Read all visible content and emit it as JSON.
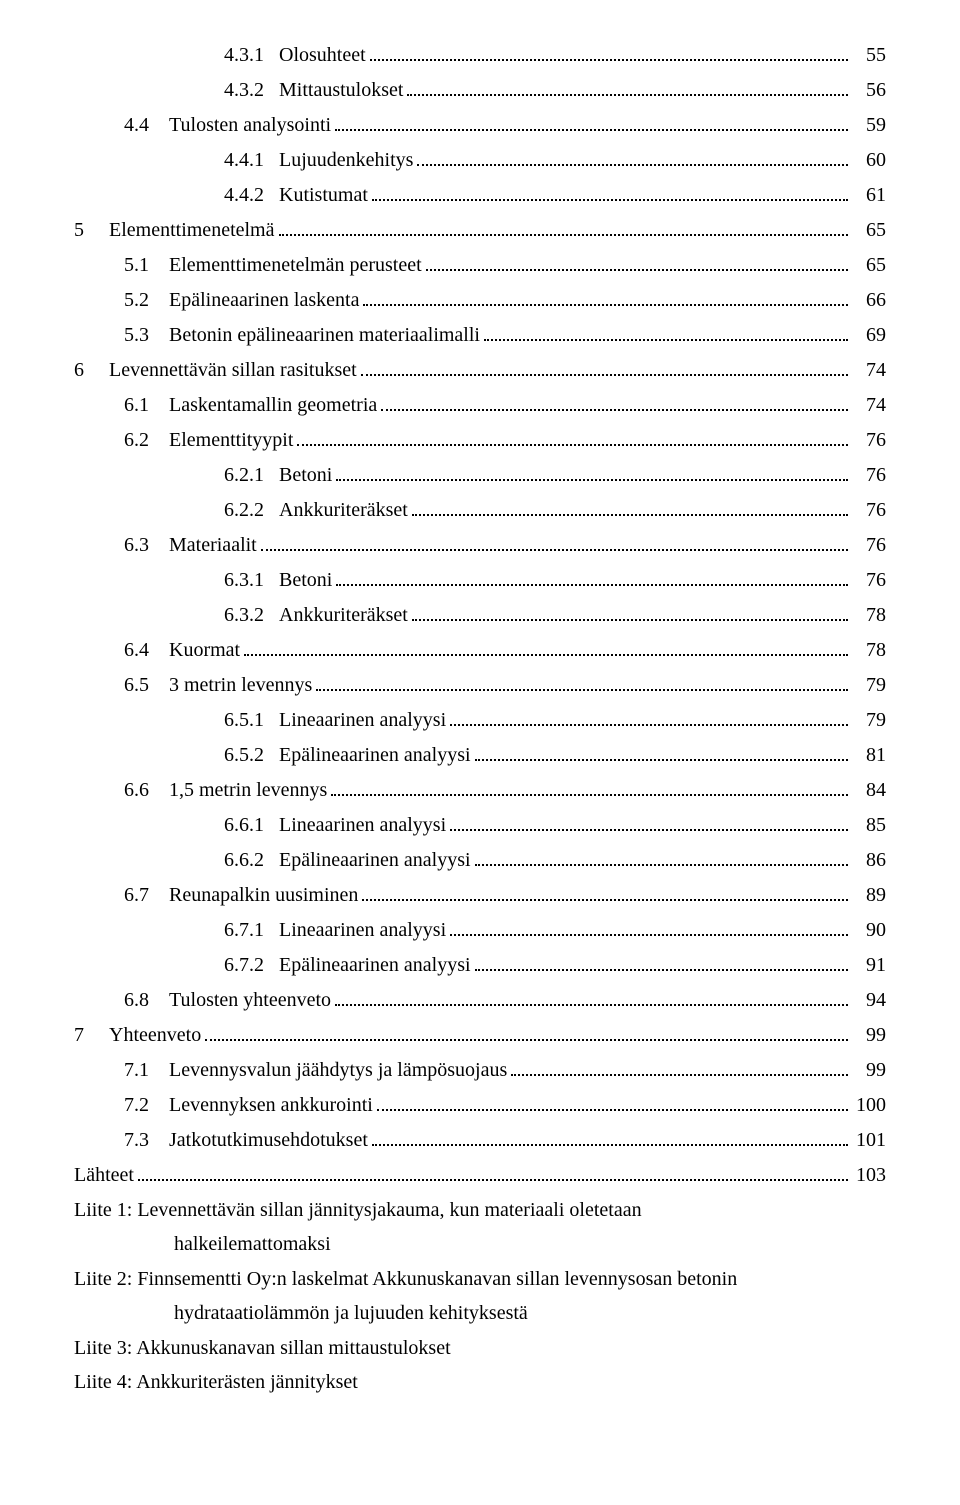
{
  "toc": [
    {
      "indent": 3,
      "num": "4.3.1",
      "title": "Olosuhteet",
      "page": "55"
    },
    {
      "indent": 3,
      "num": "4.3.2",
      "title": "Mittaustulokset",
      "page": "56"
    },
    {
      "indent": 1,
      "num": "4.4",
      "title": "Tulosten analysointi",
      "page": "59"
    },
    {
      "indent": 3,
      "num": "4.4.1",
      "title": "Lujuudenkehitys",
      "page": "60"
    },
    {
      "indent": 3,
      "num": "4.4.2",
      "title": "Kutistumat",
      "page": "61"
    },
    {
      "indent": 0,
      "num": "5",
      "title": "Elementtimenetelmä",
      "page": "65"
    },
    {
      "indent": 1,
      "num": "5.1",
      "title": "Elementtimenetelmän perusteet",
      "page": "65"
    },
    {
      "indent": 1,
      "num": "5.2",
      "title": "Epälineaarinen laskenta",
      "page": "66"
    },
    {
      "indent": 1,
      "num": "5.3",
      "title": "Betonin epälineaarinen materiaalimalli",
      "page": "69"
    },
    {
      "indent": 0,
      "num": "6",
      "title": "Levennettävän sillan rasitukset",
      "page": "74"
    },
    {
      "indent": 1,
      "num": "6.1",
      "title": "Laskentamallin geometria",
      "page": "74"
    },
    {
      "indent": 1,
      "num": "6.2",
      "title": "Elementtityypit",
      "page": "76"
    },
    {
      "indent": 3,
      "num": "6.2.1",
      "title": "Betoni",
      "page": "76"
    },
    {
      "indent": 3,
      "num": "6.2.2",
      "title": "Ankkuriteräkset",
      "page": "76"
    },
    {
      "indent": 1,
      "num": "6.3",
      "title": "Materiaalit",
      "page": "76"
    },
    {
      "indent": 3,
      "num": "6.3.1",
      "title": "Betoni",
      "page": "76"
    },
    {
      "indent": 3,
      "num": "6.3.2",
      "title": "Ankkuriteräkset",
      "page": "78"
    },
    {
      "indent": 1,
      "num": "6.4",
      "title": "Kuormat",
      "page": "78"
    },
    {
      "indent": 1,
      "num": "6.5",
      "title": "3 metrin levennys",
      "page": "79"
    },
    {
      "indent": 3,
      "num": "6.5.1",
      "title": "Lineaarinen analyysi",
      "page": "79"
    },
    {
      "indent": 3,
      "num": "6.5.2",
      "title": "Epälineaarinen analyysi",
      "page": "81"
    },
    {
      "indent": 1,
      "num": "6.6",
      "title": "1,5 metrin levennys",
      "page": "84"
    },
    {
      "indent": 3,
      "num": "6.6.1",
      "title": "Lineaarinen analyysi",
      "page": "85"
    },
    {
      "indent": 3,
      "num": "6.6.2",
      "title": "Epälineaarinen analyysi",
      "page": "86"
    },
    {
      "indent": 1,
      "num": "6.7",
      "title": "Reunapalkin uusiminen",
      "page": "89"
    },
    {
      "indent": 3,
      "num": "6.7.1",
      "title": "Lineaarinen analyysi",
      "page": "90"
    },
    {
      "indent": 3,
      "num": "6.7.2",
      "title": "Epälineaarinen analyysi",
      "page": "91"
    },
    {
      "indent": 1,
      "num": "6.8",
      "title": "Tulosten yhteenveto",
      "page": "94"
    },
    {
      "indent": 0,
      "num": "7",
      "title": "Yhteenveto",
      "page": "99"
    },
    {
      "indent": 1,
      "num": "7.1",
      "title": "Levennysvalun jäähdytys ja lämpösuojaus",
      "page": "99"
    },
    {
      "indent": 1,
      "num": "7.2",
      "title": "Levennyksen ankkurointi",
      "page": "100"
    },
    {
      "indent": 1,
      "num": "7.3",
      "title": "Jatkotutkimusehdotukset",
      "page": "101"
    },
    {
      "indent": 0,
      "num": "",
      "title": "Lähteet",
      "page": "103"
    }
  ],
  "appendices": [
    {
      "line1": "Liite 1: Levennettävän sillan jännitysjakauma, kun materiaali oletetaan",
      "line2": "halkeilemattomaksi"
    },
    {
      "line1": "Liite 2: Finnsementti Oy:n laskelmat Akkunuskanavan sillan levennysosan betonin",
      "line2": "hydrataatiolämmön ja lujuuden kehityksestä"
    },
    {
      "line1": "Liite 3: Akkunuskanavan sillan mittaustulokset",
      "line2": ""
    },
    {
      "line1": "Liite 4: Ankkuriterästen jännitykset",
      "line2": ""
    }
  ]
}
